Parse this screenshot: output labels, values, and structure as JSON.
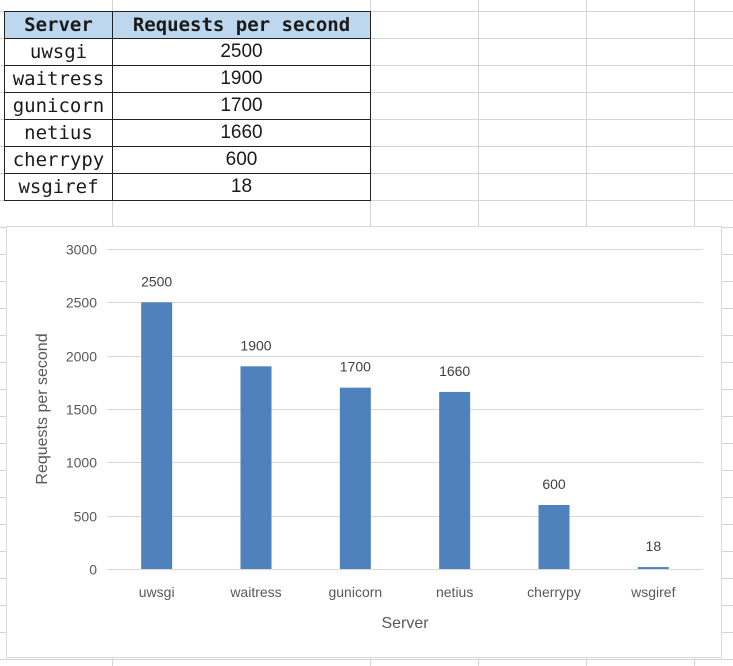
{
  "table": {
    "headers": [
      "Server",
      "Requests per second"
    ],
    "rows": [
      {
        "server": "uwsgi",
        "rps": "2500"
      },
      {
        "server": "waitress",
        "rps": "1900"
      },
      {
        "server": "gunicorn",
        "rps": "1700"
      },
      {
        "server": "netius",
        "rps": "1660"
      },
      {
        "server": "cherrypy",
        "rps": "600"
      },
      {
        "server": "wsgiref",
        "rps": "18"
      }
    ]
  },
  "chart_data": {
    "type": "bar",
    "categories": [
      "uwsgi",
      "waitress",
      "gunicorn",
      "netius",
      "cherrypy",
      "wsgiref"
    ],
    "values": [
      2500,
      1900,
      1700,
      1660,
      600,
      18
    ],
    "title": "",
    "xlabel": "Server",
    "ylabel": "Requests per second",
    "ylim": [
      0,
      3000
    ],
    "yticks": [
      0,
      500,
      1000,
      1500,
      2000,
      2500,
      3000
    ],
    "grid": true,
    "legend": "none",
    "bar_color": "#4f81bd",
    "data_labels": true
  }
}
